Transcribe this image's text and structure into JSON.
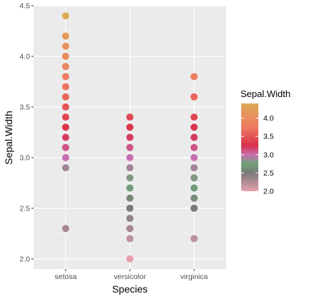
{
  "chart_data": {
    "type": "scatter",
    "xlabel": "Species",
    "ylabel": "Sepal.Width",
    "categories": [
      "setosa",
      "versicolor",
      "virginica"
    ],
    "ylim": [
      1.9,
      4.5
    ],
    "yticks": [
      "2.0",
      "2.5",
      "3.0",
      "3.5",
      "4.0",
      "4.5"
    ],
    "grid": true,
    "legend": {
      "title": "Sepal.Width",
      "placement": "right",
      "labels": [
        "4.0",
        "3.5",
        "3.0",
        "2.5",
        "2.0"
      ],
      "gradient": [
        {
          "value": 2.0,
          "color": "#e8a0ad"
        },
        {
          "value": 2.5,
          "color": "#7a7a7a"
        },
        {
          "value": 2.75,
          "color": "#6fa277"
        },
        {
          "value": 3.0,
          "color": "#c76eb0"
        },
        {
          "value": 3.25,
          "color": "#d82f4a"
        },
        {
          "value": 3.75,
          "color": "#ef7a62"
        },
        {
          "value": 4.4,
          "color": "#ddaa55"
        }
      ]
    },
    "series": [
      {
        "category": "setosa",
        "y": [
          4.4,
          4.2,
          4.1,
          4.0,
          3.9,
          3.8,
          3.7,
          3.6,
          3.5,
          3.4,
          3.3,
          3.2,
          3.1,
          3.0,
          2.9,
          2.3
        ]
      },
      {
        "category": "versicolor",
        "y": [
          3.4,
          3.3,
          3.2,
          3.1,
          3.0,
          2.9,
          2.8,
          2.7,
          2.6,
          2.5,
          2.4,
          2.3,
          2.2,
          2.0
        ]
      },
      {
        "category": "virginica",
        "y": [
          3.8,
          3.6,
          3.4,
          3.3,
          3.2,
          3.1,
          3.0,
          2.9,
          2.8,
          2.7,
          2.6,
          2.5,
          2.2
        ]
      }
    ]
  }
}
